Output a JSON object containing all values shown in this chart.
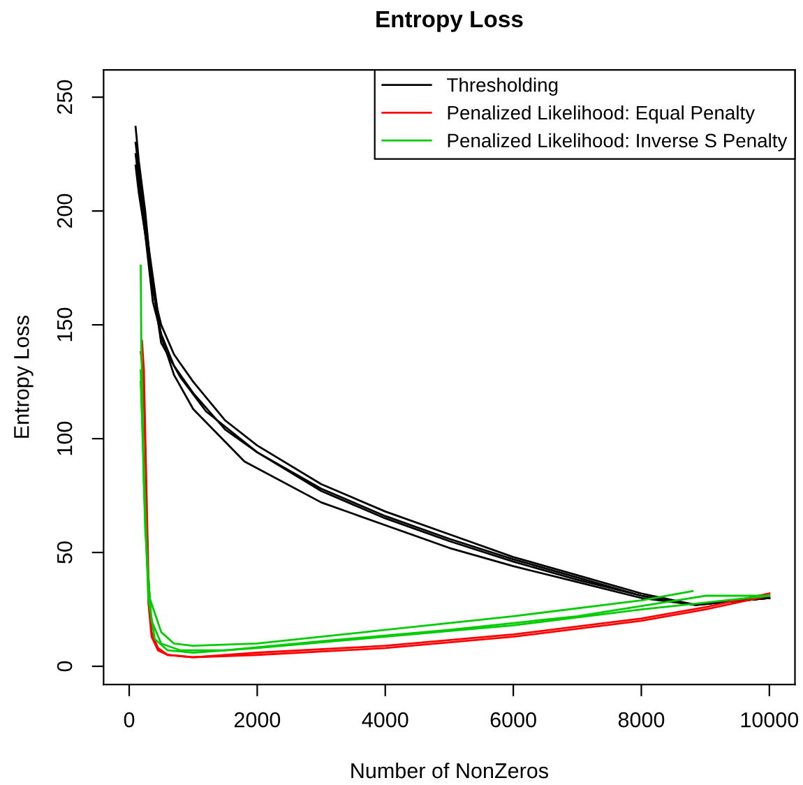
{
  "chart_data": {
    "type": "line",
    "title": "Entropy Loss",
    "xlabel": "Number of NonZeros",
    "ylabel": "Entropy Loss",
    "xlim": [
      -400,
      10400
    ],
    "ylim": [
      -8,
      262
    ],
    "xticks": [
      0,
      2000,
      4000,
      6000,
      8000,
      10000
    ],
    "yticks": [
      0,
      50,
      100,
      150,
      200,
      250
    ],
    "grid": false,
    "legend": "top right",
    "marker": "none",
    "line_style": "solid",
    "series": [
      {
        "name": "Thresholding",
        "color": "#000000",
        "x": [
          100,
          150,
          250,
          370,
          500,
          700,
          1000,
          1500,
          2000,
          3000,
          4000,
          5000,
          6000,
          7000,
          8000,
          8850,
          10000
        ],
        "values": [
          237,
          222,
          200,
          165,
          150,
          137,
          125,
          108,
          97,
          80,
          68,
          58,
          48,
          40,
          32,
          27,
          30
        ]
      },
      {
        "color": "#000000",
        "x": [
          100,
          150,
          250,
          370,
          500,
          700,
          1000,
          1500,
          2000,
          3000,
          4000,
          5000,
          6000,
          7000,
          8000,
          8850,
          10000
        ],
        "values": [
          220,
          208,
          190,
          160,
          146,
          132,
          120,
          104,
          94,
          78,
          66,
          56,
          47,
          39,
          31,
          27,
          30
        ]
      },
      {
        "color": "#000000",
        "x": [
          100,
          250,
          500,
          700,
          1000,
          1800,
          3000,
          4000,
          5000,
          6000,
          7000,
          8000,
          8850,
          10000
        ],
        "values": [
          230,
          195,
          145,
          128,
          113,
          90,
          72,
          62,
          52,
          44,
          37,
          30,
          27,
          30
        ]
      },
      {
        "color": "#000000",
        "x": [
          100,
          250,
          500,
          800,
          1200,
          2000,
          3000,
          4000,
          5000,
          6000,
          7000,
          8000,
          8850,
          10000
        ],
        "values": [
          225,
          190,
          142,
          127,
          112,
          94,
          77,
          65,
          55,
          46,
          38,
          31,
          27,
          30
        ]
      },
      {
        "name": "Penalized Likelihood: Equal Penalty",
        "color": "#ff0000",
        "x": [
          200,
          230,
          260,
          300,
          350,
          450,
          600,
          1000,
          2000,
          4000,
          6000,
          8000,
          9000,
          10000
        ],
        "values": [
          143,
          130,
          90,
          40,
          15,
          8,
          5,
          4,
          5,
          8,
          13,
          20,
          25,
          31
        ]
      },
      {
        "color": "#ff0000",
        "x": [
          180,
          220,
          260,
          300,
          350,
          450,
          600,
          1000,
          2000,
          4000,
          6000,
          8000,
          9000,
          10000
        ],
        "values": [
          138,
          128,
          85,
          28,
          13,
          7,
          5,
          4,
          6,
          9,
          14,
          21,
          26,
          32
        ]
      },
      {
        "name": "Penalized Likelihood: Inverse S Penalty",
        "color": "#00cc00",
        "x": [
          180,
          190,
          230,
          300,
          400,
          600,
          1000,
          2000,
          4000,
          6000,
          8000,
          9000,
          10000
        ],
        "values": [
          176,
          140,
          80,
          30,
          12,
          7,
          6,
          8,
          13,
          18,
          25,
          28,
          31
        ]
      },
      {
        "color": "#00cc00",
        "x": [
          180,
          200,
          250,
          320,
          500,
          700,
          1000,
          2000,
          4000,
          6000,
          8000,
          8800
        ],
        "values": [
          130,
          110,
          60,
          30,
          15,
          10,
          9,
          10,
          16,
          22,
          29,
          33
        ]
      },
      {
        "color": "#00cc00",
        "x": [
          180,
          220,
          280,
          350,
          500,
          800,
          1500,
          3000,
          5000,
          7000,
          9000,
          10000
        ],
        "values": [
          125,
          95,
          45,
          20,
          10,
          7,
          7,
          11,
          16,
          22,
          31,
          31
        ]
      }
    ]
  }
}
